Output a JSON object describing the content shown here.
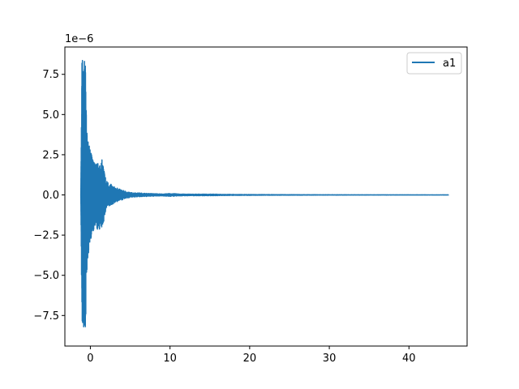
{
  "chart_data": {
    "type": "line",
    "title": "",
    "xlabel": "",
    "ylabel": "",
    "xlim": [
      -3.2,
      47.3
    ],
    "ylim": [
      -9.4e-06,
      9.2e-06
    ],
    "x_ticks": [
      0,
      10,
      20,
      30,
      40
    ],
    "x_tick_labels": [
      "0",
      "10",
      "20",
      "30",
      "40"
    ],
    "y_ticks": [
      -7.5e-06,
      -5e-06,
      -2.5e-06,
      0,
      2.5e-06,
      5e-06,
      7.5e-06
    ],
    "y_tick_labels": [
      "−7.5",
      "−5.0",
      "−2.5",
      "0.0",
      "2.5",
      "5.0",
      "7.5"
    ],
    "y_offset_label": "1e−6",
    "grid": false,
    "legend_position": "top-right",
    "series": [
      {
        "name": "a1",
        "color": "#1f77b4",
        "envelope": {
          "x": [
            -1.2,
            -1.05,
            -0.95,
            -0.8,
            -0.6,
            -0.4,
            0.0,
            0.5,
            1.0,
            1.5,
            2.0,
            2.5,
            3.0,
            4.0,
            5.0,
            7.0,
            9.0,
            10.0,
            12.0,
            15.0,
            18.0,
            22.0,
            30.0,
            45.0
          ],
          "max": [
            0.0,
            8.6e-06,
            8.2e-06,
            8.5e-06,
            8e-06,
            3.5e-06,
            2.8e-06,
            2e-06,
            2e-06,
            2.2e-06,
            9e-07,
            7e-07,
            5e-07,
            3e-07,
            1.5e-07,
            1e-07,
            6e-08,
            9e-08,
            5e-08,
            5e-08,
            3e-08,
            2e-08,
            1e-08,
            5e-09
          ],
          "min": [
            0.0,
            -8.6e-06,
            -8.3e-06,
            -8.4e-06,
            -8.2e-06,
            -4.3e-06,
            -2.8e-06,
            -2.2e-06,
            -2.2e-06,
            -2.1e-06,
            -9e-07,
            -7e-07,
            -5e-07,
            -3e-07,
            -1.5e-07,
            -1e-07,
            -6e-08,
            -9e-08,
            -5e-08,
            -5e-08,
            -3e-08,
            -2e-08,
            -1e-08,
            -5e-09
          ]
        }
      }
    ]
  }
}
